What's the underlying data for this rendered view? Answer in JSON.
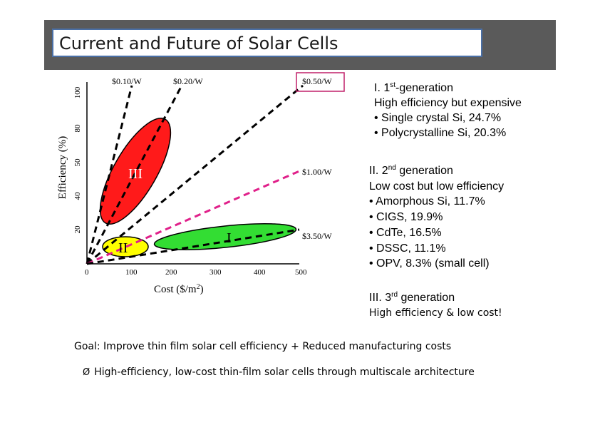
{
  "slide": {
    "title": "Current and Future of Solar Cells"
  },
  "chart_data": {
    "type": "scatter",
    "xlabel": "Cost ($/m",
    "xlabel_sup": "2",
    "xlabel_end": ")",
    "ylabel": "Efficiency (%)",
    "x_ticks": [
      "0",
      "100",
      "200",
      "300",
      "400",
      "500"
    ],
    "y_ticks": [
      "20",
      "40",
      "50",
      "80",
      "100"
    ],
    "cost_lines": [
      {
        "label": "$0.10/W",
        "dashed": "black",
        "boxed": false
      },
      {
        "label": "$0.20/W",
        "dashed": "black",
        "boxed": false
      },
      {
        "label": "$0.50/W",
        "dashed": "black",
        "boxed": true
      },
      {
        "label": "$1.00/W",
        "dashed": "magenta",
        "boxed": false
      },
      {
        "label": "$3.50/W",
        "dashed": "black",
        "boxed": false
      }
    ],
    "regions": [
      {
        "label": "III",
        "color": "#ff1a1a"
      },
      {
        "label": "II",
        "color": "#ffff00"
      },
      {
        "label": "I",
        "color": "#33dd33"
      }
    ],
    "colors": {
      "magenta_line": "#e0208a",
      "box": "#c0206a"
    }
  },
  "generations": {
    "first": {
      "prefix": "I. 1",
      "sup": "st",
      "suffix": "-generation",
      "lines": [
        "High efficiency but expensive",
        "• Single crystal Si, 24.7%",
        "• Polycrystalline Si, 20.3%"
      ]
    },
    "second": {
      "prefix": "II. 2",
      "sup": "nd",
      "suffix": " generation",
      "lines": [
        "Low cost but low efficiency",
        "• Amorphous Si, 11.7%",
        "• CIGS, 19.9%",
        "• CdTe, 16.5%",
        "• DSSC, 11.1%",
        "• OPV, 8.3% (small cell)"
      ]
    },
    "third": {
      "prefix": "III. 3",
      "sup": "rd",
      "suffix": " generation",
      "sub": "High efficiency & low cost!"
    }
  },
  "goal": {
    "label": "Goal",
    "text": ": Improve thin film solar cell efficiency + Reduced manufacturing costs"
  },
  "bullet": {
    "marker": "Ø",
    "text": "High-efficiency, low-cost thin-film solar cells through multiscale architecture"
  }
}
